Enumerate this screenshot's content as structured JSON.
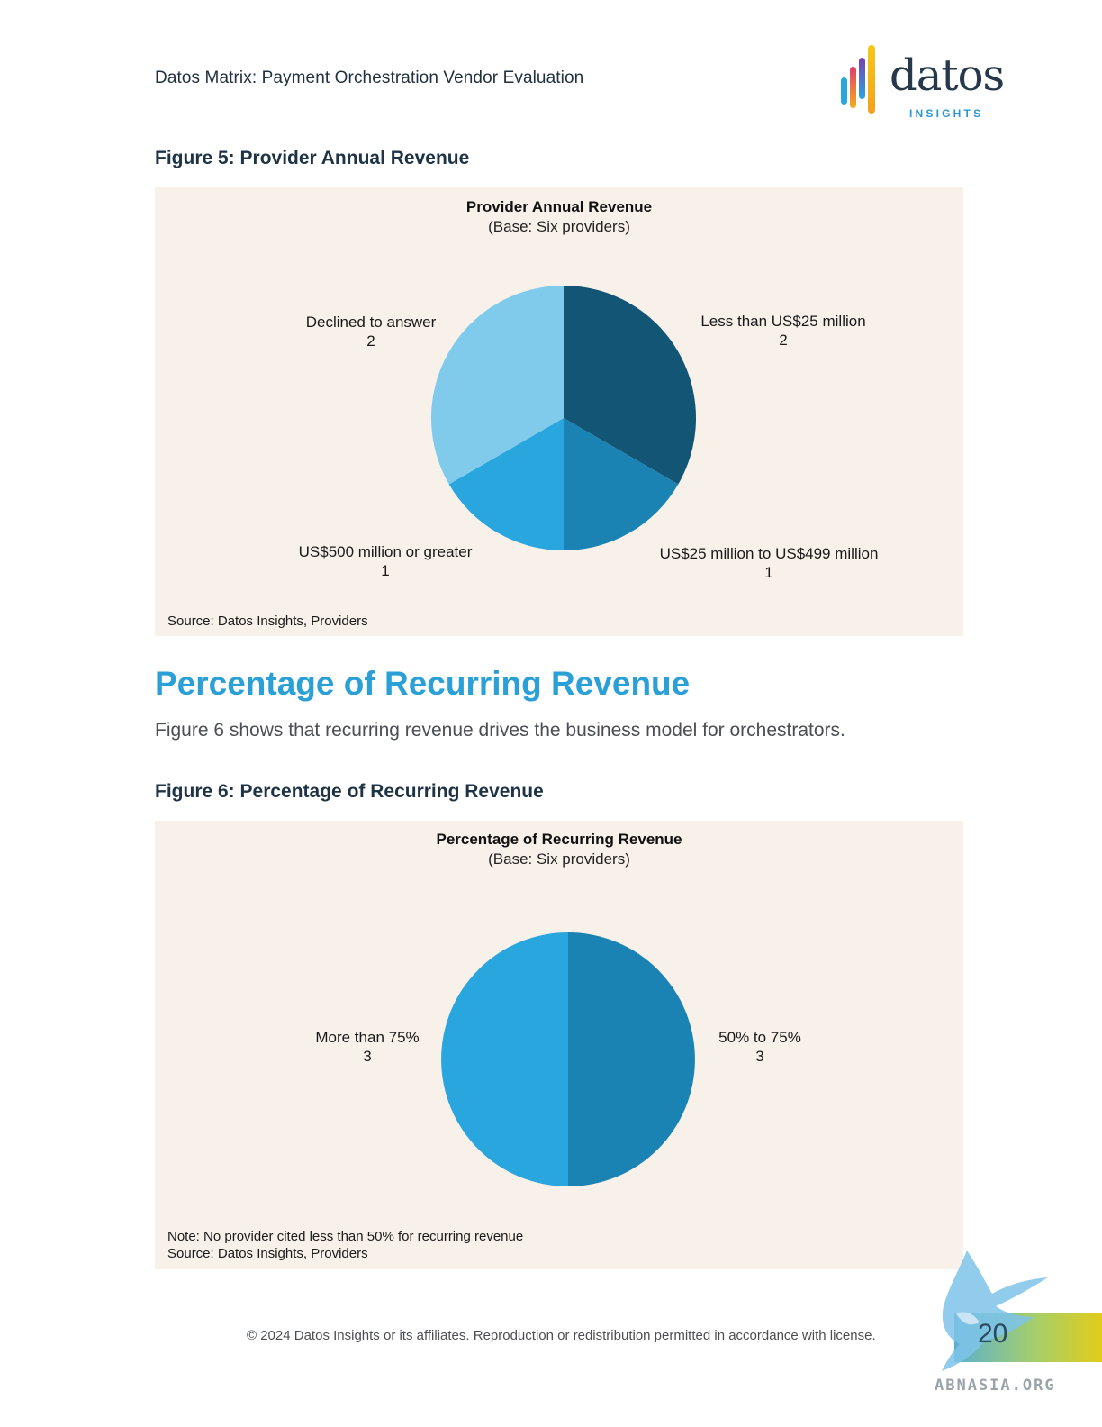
{
  "header": {
    "title": "Datos Matrix: Payment Orchestration Vendor Evaluation",
    "logo_word": "datos",
    "logo_sub": "INSIGHTS"
  },
  "figure5": {
    "caption": "Figure 5: Provider Annual Revenue",
    "source": "Source: Datos Insights, Providers"
  },
  "section": {
    "heading": "Percentage of Recurring Revenue",
    "body": "Figure 6 shows that recurring revenue drives the business model for orchestrators."
  },
  "figure6": {
    "caption": "Figure 6: Percentage of Recurring Revenue",
    "note": "Note: No provider cited less than 50% for recurring revenue",
    "source": "Source: Datos Insights, Providers"
  },
  "chart_data": [
    {
      "type": "pie",
      "title": "Provider Annual Revenue",
      "subtitle": "(Base: Six providers)",
      "slices": [
        {
          "label": "Less than US$25 million",
          "value": 2,
          "color": "#135574"
        },
        {
          "label": "US$25 million to US$499 million",
          "value": 1,
          "color": "#1a83b3"
        },
        {
          "label": "US$500 million or greater",
          "value": 1,
          "color": "#2aa6df"
        },
        {
          "label": "Declined to answer",
          "value": 2,
          "color": "#80caeb"
        }
      ]
    },
    {
      "type": "pie",
      "title": "Percentage of Recurring Revenue",
      "subtitle": "(Base: Six providers)",
      "slices": [
        {
          "label": "50% to 75%",
          "value": 3,
          "color": "#1a83b3"
        },
        {
          "label": "More than 75%",
          "value": 3,
          "color": "#2aa6df"
        }
      ]
    }
  ],
  "footer": {
    "copyright": "© 2024 Datos Insights or its affiliates. Reproduction or redistribution permitted in accordance with license.",
    "page": "20"
  },
  "watermark": {
    "text": "ABNASIA.ORG"
  }
}
